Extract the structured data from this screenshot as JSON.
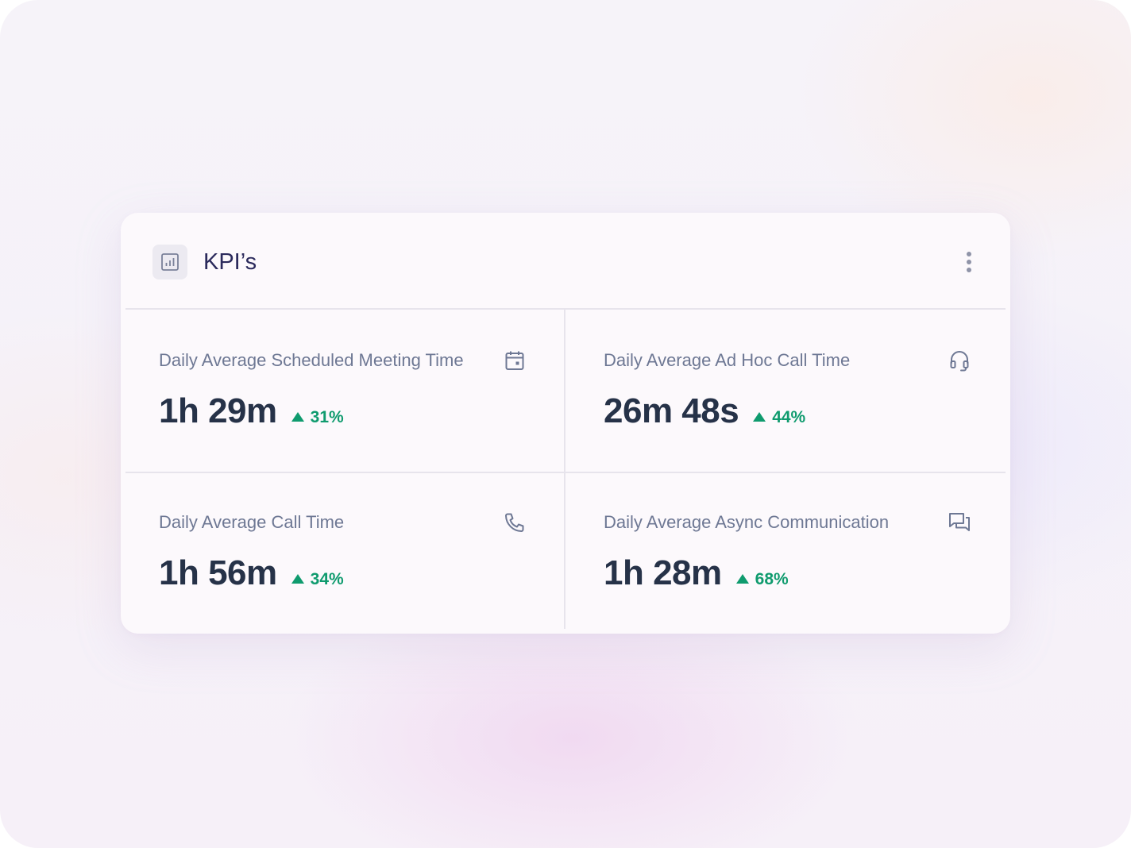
{
  "card": {
    "title": "KPI’s",
    "header_icon": "bar-chart-icon",
    "menu_icon": "more-vertical-icon"
  },
  "kpis": [
    {
      "label": "Daily Average Scheduled Meeting Time",
      "value": "1h 29m",
      "change": "31%",
      "trend": "up",
      "icon": "calendar-icon"
    },
    {
      "label": "Daily Average Ad Hoc Call Time",
      "value": "26m 48s",
      "change": "44%",
      "trend": "up",
      "icon": "headset-icon"
    },
    {
      "label": "Daily Average Call Time",
      "value": "1h 56m",
      "change": "34%",
      "trend": "up",
      "icon": "phone-icon"
    },
    {
      "label": "Daily Average Async Communication",
      "value": "1h 28m",
      "change": "68%",
      "trend": "up",
      "icon": "chat-bubbles-icon"
    }
  ],
  "colors": {
    "title": "#2b2a5c",
    "label": "#6e7894",
    "value": "#263248",
    "positive": "#0f9b6e",
    "icon": "#6e7894"
  }
}
